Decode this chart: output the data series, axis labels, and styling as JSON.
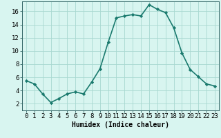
{
  "x": [
    0,
    1,
    2,
    3,
    4,
    5,
    6,
    7,
    8,
    9,
    10,
    11,
    12,
    13,
    14,
    15,
    16,
    17,
    18,
    19,
    20,
    21,
    22,
    23
  ],
  "y": [
    5.5,
    5.0,
    3.5,
    2.2,
    2.8,
    3.5,
    3.8,
    3.5,
    5.3,
    7.3,
    11.3,
    15.0,
    15.3,
    15.5,
    15.3,
    17.0,
    16.3,
    15.8,
    13.5,
    9.7,
    7.2,
    6.1,
    5.0,
    4.7
  ],
  "line_color": "#1a7a6e",
  "marker": "D",
  "marker_size": 2.2,
  "bg_color": "#d8f5f0",
  "grid_color": "#a8d8d0",
  "xlabel": "Humidex (Indice chaleur)",
  "xlim": [
    -0.5,
    23.5
  ],
  "ylim": [
    1.0,
    17.5
  ],
  "yticks": [
    2,
    4,
    6,
    8,
    10,
    12,
    14,
    16
  ],
  "xticks": [
    0,
    1,
    2,
    3,
    4,
    5,
    6,
    7,
    8,
    9,
    10,
    11,
    12,
    13,
    14,
    15,
    16,
    17,
    18,
    19,
    20,
    21,
    22,
    23
  ],
  "xtick_labels": [
    "0",
    "1",
    "2",
    "3",
    "4",
    "5",
    "6",
    "7",
    "8",
    "9",
    "10",
    "11",
    "12",
    "13",
    "14",
    "15",
    "16",
    "17",
    "18",
    "19",
    "20",
    "21",
    "22",
    "23"
  ],
  "xlabel_fontsize": 7.0,
  "tick_fontsize": 6.5,
  "line_width": 1.2
}
